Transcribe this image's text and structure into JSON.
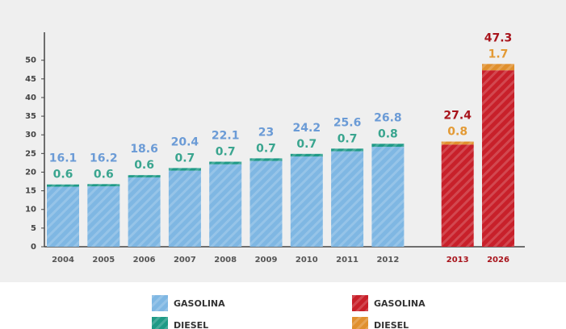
{
  "chart_data": {
    "type": "bar",
    "stacked": true,
    "categories": [
      "2004",
      "2005",
      "2006",
      "2007",
      "2008",
      "2009",
      "2010",
      "2011",
      "2012",
      "2013",
      "2026"
    ],
    "series": [
      {
        "name": "GASOLINA",
        "color": "#7fb7e3",
        "label_color": "#6b9bd6",
        "values": [
          16.1,
          16.2,
          18.6,
          20.4,
          22.1,
          23,
          24.2,
          25.6,
          26.8,
          null,
          null
        ]
      },
      {
        "name": "DIESEL",
        "color": "#1f9a86",
        "label_color": "#3aa58f",
        "values": [
          0.6,
          0.6,
          0.6,
          0.7,
          0.7,
          0.7,
          0.7,
          0.7,
          0.8,
          null,
          null
        ]
      },
      {
        "name": "GASOLINA",
        "color": "#c8202a",
        "label_color": "#a8141c",
        "values": [
          null,
          null,
          null,
          null,
          null,
          null,
          null,
          null,
          null,
          27.4,
          47.3
        ]
      },
      {
        "name": "DIESEL",
        "color": "#e0902e",
        "label_color": "#e39a35",
        "values": [
          null,
          null,
          null,
          null,
          null,
          null,
          null,
          null,
          null,
          0.8,
          1.7
        ]
      }
    ],
    "ylim": [
      0,
      57.5
    ],
    "yticks": [
      0,
      5,
      10,
      15,
      20,
      25,
      30,
      35,
      40,
      45,
      50
    ]
  }
}
